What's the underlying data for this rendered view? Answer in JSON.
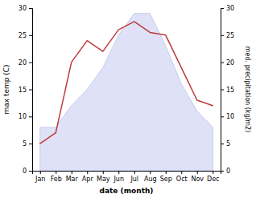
{
  "chart_data": {
    "type": "line",
    "xlabel": "date (month)",
    "ylabel": "max temp (C)",
    "y2label": "med. precipitation (kg/m2)",
    "categories": [
      "Jan",
      "Feb",
      "Mar",
      "Apr",
      "May",
      "Jun",
      "Jul",
      "Aug",
      "Sep",
      "Oct",
      "Nov",
      "Dec"
    ],
    "series": [
      {
        "type": "area",
        "color": "#c5cbf0",
        "values": [
          8.0,
          8.0,
          12.0,
          15.0,
          19.0,
          25.0,
          29.0,
          29.0,
          23.0,
          16.0,
          11.0,
          8.0
        ]
      },
      {
        "type": "line",
        "color": "#c0393b",
        "axis": "y2",
        "values": [
          5.0,
          7.0,
          20.0,
          24.0,
          22.0,
          26.0,
          27.5,
          25.5,
          25.0,
          19.0,
          13.0,
          12.0
        ]
      }
    ],
    "ylim": [
      0,
      30
    ],
    "yticks": [
      0,
      5,
      10,
      15,
      20,
      25,
      30
    ],
    "y2lim": [
      0,
      30
    ],
    "y2ticks": [
      0,
      5,
      10,
      15,
      20,
      25,
      30
    ],
    "grid": false
  }
}
